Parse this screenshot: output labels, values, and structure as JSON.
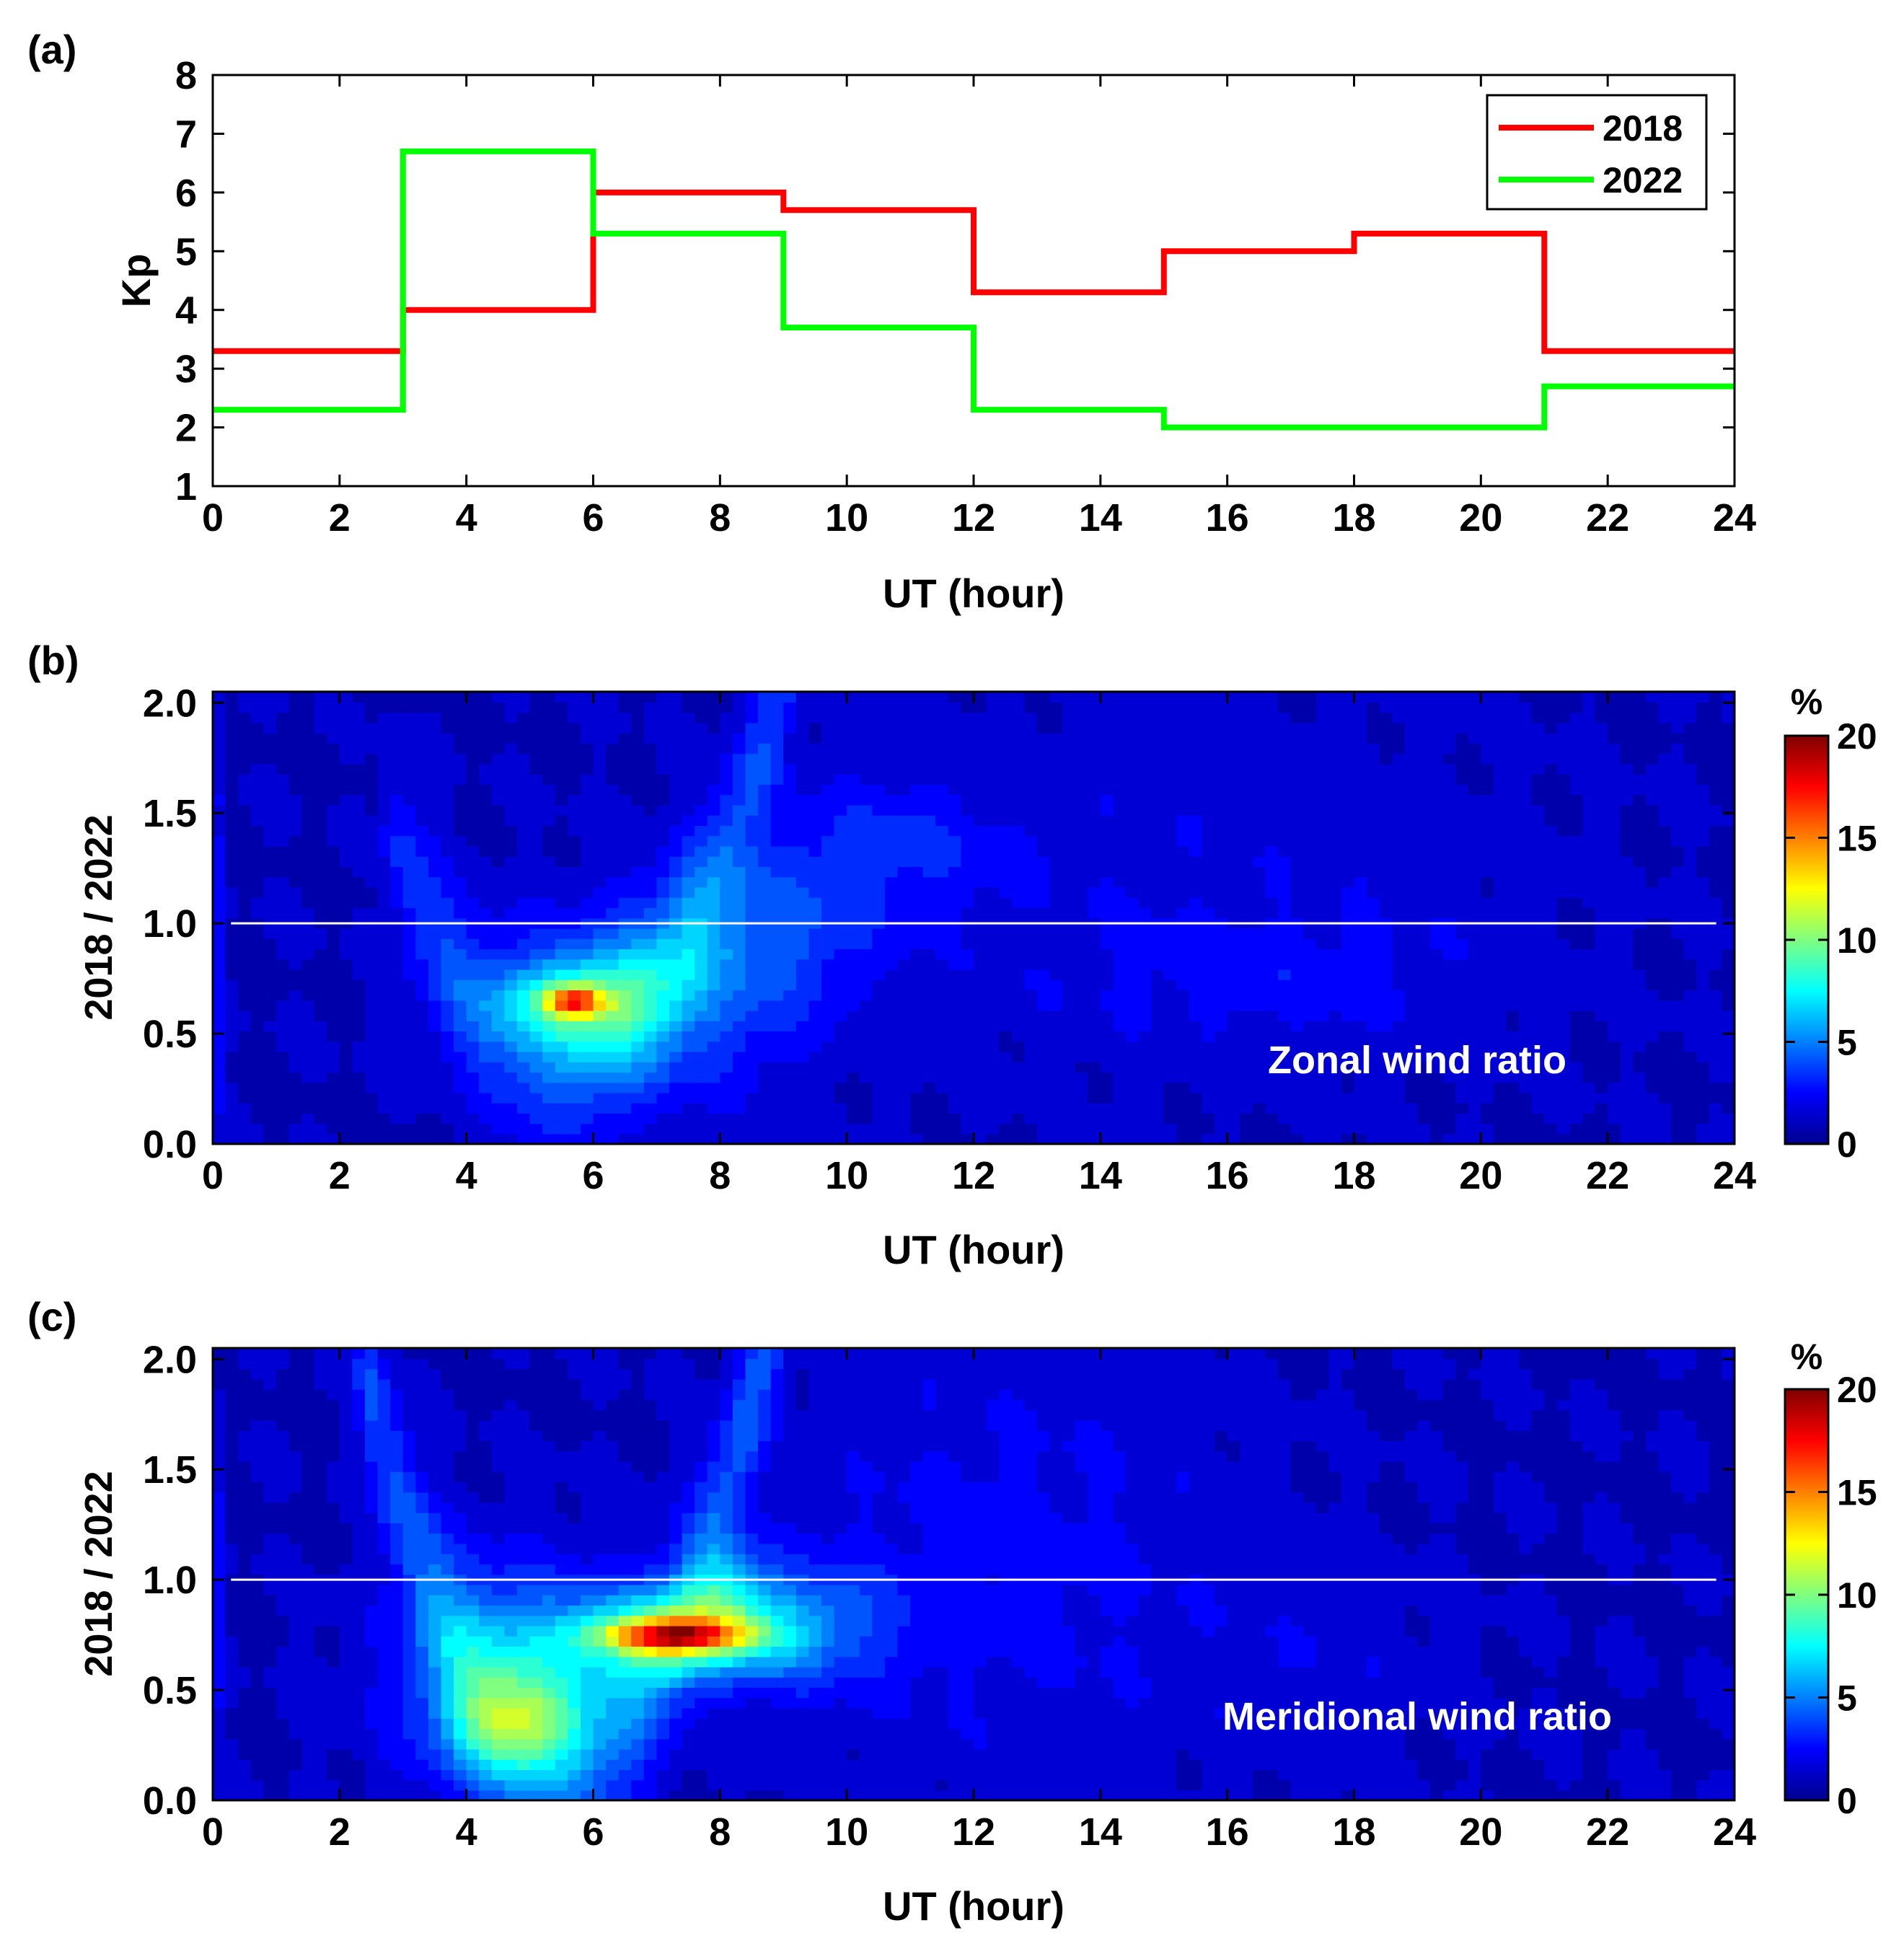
{
  "chart_data": [
    {
      "panel_label": "(a)",
      "type": "line",
      "step": true,
      "xlabel": "UT (hour)",
      "ylabel": "Kp",
      "xlim": [
        0,
        24
      ],
      "ylim": [
        1,
        8
      ],
      "x_ticks": [
        "0",
        "2",
        "4",
        "6",
        "8",
        "10",
        "12",
        "14",
        "16",
        "18",
        "20",
        "22",
        "24"
      ],
      "y_ticks": [
        "1",
        "2",
        "3",
        "4",
        "5",
        "6",
        "7",
        "8"
      ],
      "legend_position": "top-right",
      "x": [
        0,
        3,
        6,
        9,
        12,
        15,
        18,
        21
      ],
      "series": [
        {
          "name": "2018",
          "color": "#ff0000",
          "values": [
            3.3,
            4.0,
            6.0,
            5.7,
            4.3,
            5.0,
            5.3,
            3.3
          ]
        },
        {
          "name": "2022",
          "color": "#00ff00",
          "values": [
            2.3,
            6.7,
            5.3,
            3.7,
            2.3,
            2.0,
            2.0,
            2.7
          ]
        }
      ]
    },
    {
      "panel_label": "(b)",
      "type": "heatmap",
      "annotation": "Zonal wind ratio",
      "xlabel": "UT (hour)",
      "ylabel": "2018 / 2022",
      "xlim": [
        0,
        24
      ],
      "ylim": [
        0,
        2.05
      ],
      "x_ticks": [
        "0",
        "2",
        "4",
        "6",
        "8",
        "10",
        "12",
        "14",
        "16",
        "18",
        "20",
        "22",
        "24"
      ],
      "y_ticks": [
        "0.0",
        "0.5",
        "1.0",
        "1.5",
        "2.0"
      ],
      "reference_line_y": 1.0,
      "colorbar": {
        "unit": "%",
        "range": [
          0,
          20
        ],
        "ticks": [
          "0",
          "5",
          "10",
          "15",
          "20"
        ]
      },
      "background_value": 1.2,
      "features": [
        {
          "x": 5.7,
          "y": 0.65,
          "sx": 0.3,
          "sy": 0.045,
          "amp": 8.0
        },
        {
          "x": 5.8,
          "y": 0.65,
          "sx": 0.8,
          "sy": 0.13,
          "amp": 5.0
        },
        {
          "x": 6.6,
          "y": 0.6,
          "sx": 1.6,
          "sy": 0.3,
          "amp": 3.0
        },
        {
          "x": 8.5,
          "y": 0.95,
          "sx": 1.2,
          "sy": 0.25,
          "amp": 2.5
        },
        {
          "x": 10.5,
          "y": 1.35,
          "sx": 1.3,
          "sy": 0.22,
          "amp": 1.6
        },
        {
          "x": 17.0,
          "y": 0.75,
          "sx": 2.2,
          "sy": 0.2,
          "amp": 0.9
        },
        {
          "x": 15.0,
          "y": 1.15,
          "sx": 4.0,
          "sy": 0.6,
          "amp": 0.7
        },
        {
          "x": 0.0,
          "y": 0.95,
          "sx": 0.1,
          "sy": 0.6,
          "amp": 2.5
        }
      ],
      "ridge": {
        "center_x": 5.5,
        "center_y": 0.4,
        "curvature": 0.14,
        "width": 0.28,
        "x_min": 3.0,
        "x_max": 12.5,
        "amp": 2.2
      }
    },
    {
      "panel_label": "(c)",
      "type": "heatmap",
      "annotation": "Meridional wind ratio",
      "xlabel": "UT (hour)",
      "ylabel": "2018 / 2022",
      "xlim": [
        0,
        24
      ],
      "ylim": [
        0,
        2.05
      ],
      "x_ticks": [
        "0",
        "2",
        "4",
        "6",
        "8",
        "10",
        "12",
        "14",
        "16",
        "18",
        "20",
        "22",
        "24"
      ],
      "y_ticks": [
        "0.0",
        "0.5",
        "1.0",
        "1.5",
        "2.0"
      ],
      "reference_line_y": 1.0,
      "colorbar": {
        "unit": "%",
        "range": [
          0,
          20
        ],
        "ticks": [
          "0",
          "5",
          "10",
          "15",
          "20"
        ]
      },
      "background_value": 1.2,
      "features": [
        {
          "x": 7.3,
          "y": 0.75,
          "sx": 0.8,
          "sy": 0.05,
          "amp": 9.0
        },
        {
          "x": 7.2,
          "y": 0.75,
          "sx": 1.3,
          "sy": 0.14,
          "amp": 6.0
        },
        {
          "x": 8.2,
          "y": 0.95,
          "sx": 0.4,
          "sy": 0.15,
          "amp": 3.0
        },
        {
          "x": 4.8,
          "y": 0.35,
          "sx": 0.7,
          "sy": 0.15,
          "amp": 4.5
        },
        {
          "x": 4.6,
          "y": 0.55,
          "sx": 1.2,
          "sy": 0.35,
          "amp": 4.0
        },
        {
          "x": 9.0,
          "y": 0.8,
          "sx": 1.2,
          "sy": 0.2,
          "amp": 3.0
        },
        {
          "x": 12.5,
          "y": 1.1,
          "sx": 2.5,
          "sy": 0.7,
          "amp": 1.2
        },
        {
          "x": 17.5,
          "y": 0.6,
          "sx": 1.5,
          "sy": 0.3,
          "amp": 0.6
        },
        {
          "x": 0.0,
          "y": 1.0,
          "sx": 0.1,
          "sy": 0.5,
          "amp": 2.5
        }
      ],
      "ridge": {
        "center_x": 5.5,
        "center_y": 0.2,
        "curvature": 0.18,
        "width": 0.3,
        "x_min": 2.5,
        "x_max": 11.0,
        "amp": 2.8
      }
    }
  ]
}
